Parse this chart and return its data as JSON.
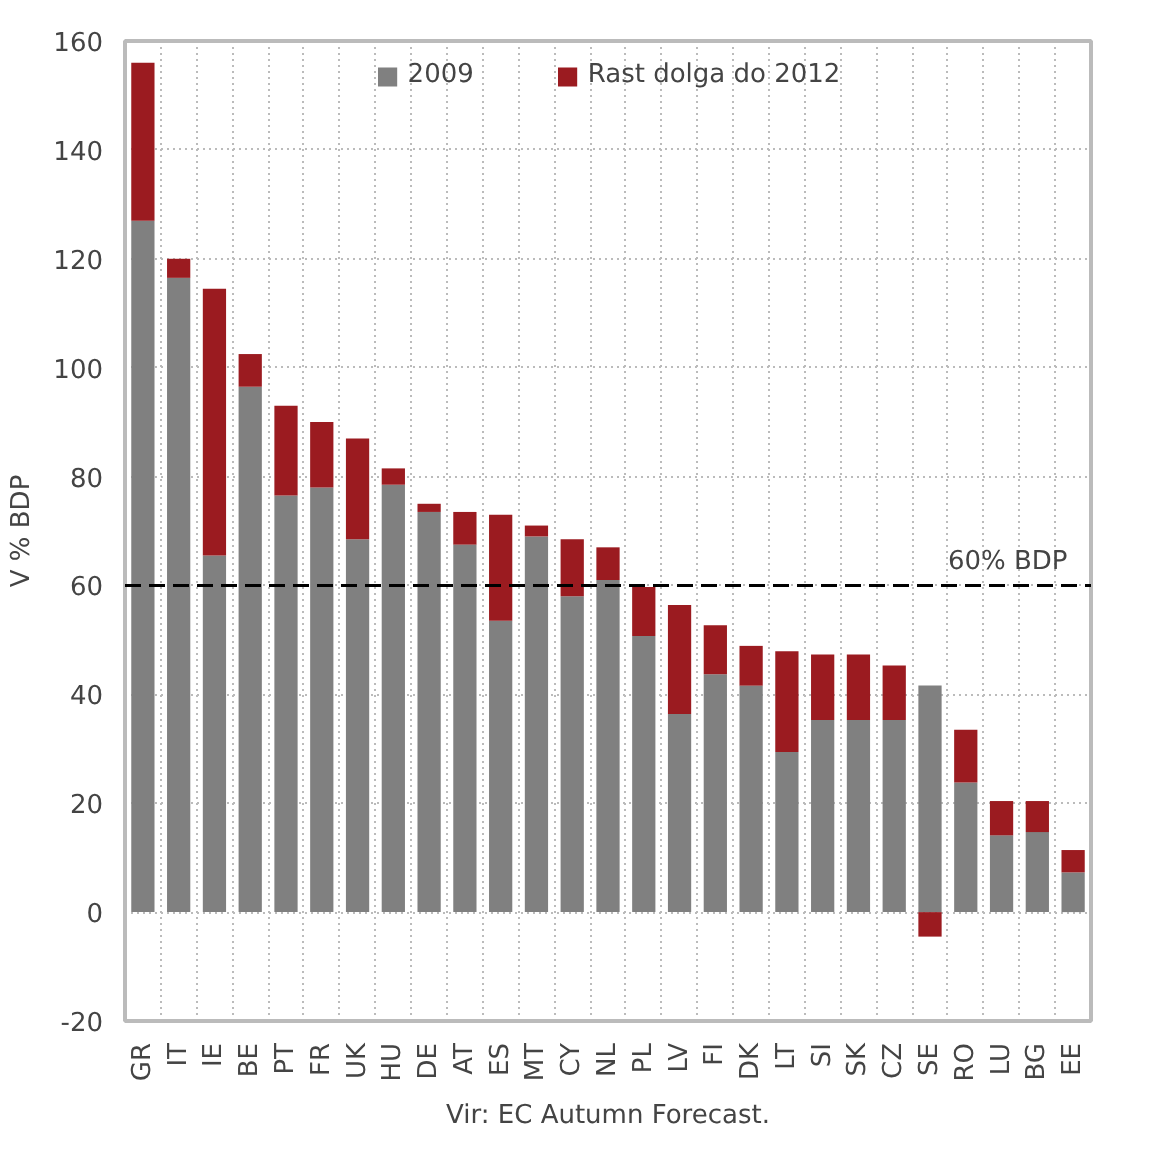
{
  "chart_data": {
    "type": "bar",
    "stacked": true,
    "ylabel": "V % BDP",
    "categories": [
      "GR",
      "IT",
      "IE",
      "BE",
      "PT",
      "FR",
      "UK",
      "HU",
      "DE",
      "AT",
      "ES",
      "MT",
      "CY",
      "NL",
      "PL",
      "LV",
      "FI",
      "DK",
      "LT",
      "SI",
      "SK",
      "CZ",
      "SE",
      "RO",
      "LU",
      "BG",
      "EE"
    ],
    "series": [
      {
        "name": "2009",
        "color": "#808080",
        "values": [
          127,
          116.5,
          65.5,
          96.5,
          76.5,
          78,
          68.5,
          78.5,
          73.5,
          67.5,
          53.5,
          69,
          58,
          61,
          50.7,
          36.4,
          43.7,
          41.6,
          29.4,
          35.3,
          35.3,
          35.3,
          41.6,
          23.8,
          14.1,
          14.7,
          7.3
        ]
      },
      {
        "name": "Rast dolga do 2012",
        "color": "#9b1b20",
        "values": [
          29,
          3.5,
          49,
          6,
          16.5,
          12,
          18.5,
          3,
          1.5,
          6,
          19.5,
          2,
          10.5,
          6,
          9,
          20,
          9,
          7.3,
          18.5,
          12,
          12,
          10,
          -4.5,
          9.7,
          6.3,
          5.7,
          4.1
        ]
      }
    ],
    "ylim": [
      -20,
      160
    ],
    "yticks": [
      -20,
      0,
      20,
      40,
      60,
      80,
      100,
      120,
      140,
      160
    ],
    "grid": true,
    "legend": "top",
    "ref_lines": [
      {
        "axis": "y",
        "value": 60,
        "label": "60% BDP",
        "color": "#000000",
        "line_style": "dashed"
      }
    ],
    "annotations": [
      "Vir: EC Autumn Forecast."
    ]
  }
}
